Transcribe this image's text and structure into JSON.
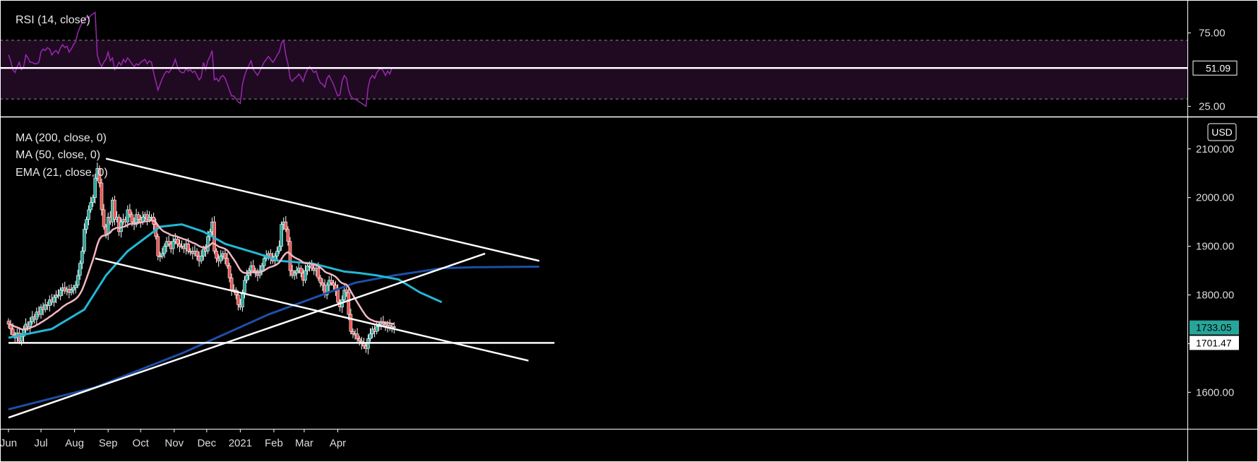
{
  "chart_data": {
    "type": "candlestick",
    "currency": "USD",
    "x_ticks": [
      {
        "label": "Jun",
        "date": "2020-06-01"
      },
      {
        "label": "Jul",
        "date": "2020-07-01"
      },
      {
        "label": "Aug",
        "date": "2020-08-01"
      },
      {
        "label": "Sep",
        "date": "2020-09-01"
      },
      {
        "label": "Oct",
        "date": "2020-10-01"
      },
      {
        "label": "Nov",
        "date": "2020-11-01"
      },
      {
        "label": "Dec",
        "date": "2020-12-01"
      },
      {
        "label": "2021",
        "date": "2021-01-01"
      },
      {
        "label": "Feb",
        "date": "2021-02-01"
      },
      {
        "label": "Mar",
        "date": "2021-03-01"
      },
      {
        "label": "Apr",
        "date": "2021-04-01"
      }
    ],
    "price_axis": {
      "ylim": [
        1525,
        2165
      ],
      "ticks": [
        "2100.00",
        "2000.00",
        "1900.00",
        "1800.00",
        "1700.00",
        "1600.00"
      ]
    },
    "price_tags": [
      {
        "value": 1733.05,
        "label": "1733.05",
        "color": "#26a69a",
        "text_color": "#000000"
      },
      {
        "value": 1701.47,
        "label": "1701.47",
        "color": "#ffffff",
        "text_color": "#000000"
      }
    ],
    "indicators": [
      {
        "label": "MA (200, close, 0)",
        "color": "#1e4fa8"
      },
      {
        "label": "MA (50, close, 0)",
        "color": "#22b8d6"
      },
      {
        "label": "EMA (21, close, 0)",
        "color": "#f3b6c2"
      }
    ],
    "candles": {
      "start_date": "2020-06-01",
      "step_days": 2,
      "closes": [
        1740,
        1730,
        1718,
        1712,
        1722,
        1705,
        1715,
        1728,
        1740,
        1735,
        1745,
        1755,
        1750,
        1765,
        1760,
        1775,
        1770,
        1780,
        1778,
        1790,
        1785,
        1795,
        1800,
        1798,
        1810,
        1815,
        1808,
        1812,
        1805,
        1810,
        1815,
        1820,
        1840,
        1865,
        1890,
        1935,
        1955,
        1975,
        1990,
        2000,
        2040,
        2060,
        2030,
        1975,
        1940,
        1925,
        1960,
        1950,
        1995,
        1955,
        1960,
        1930,
        1950,
        1955,
        1950,
        1975,
        1965,
        1950,
        1945,
        1965,
        1955,
        1950,
        1960,
        1965,
        1955,
        1960,
        1960,
        1945,
        1920,
        1880,
        1880,
        1885,
        1900,
        1910,
        1905,
        1895,
        1910,
        1915,
        1905,
        1900,
        1900,
        1895,
        1905,
        1890,
        1890,
        1885,
        1890,
        1880,
        1870,
        1880,
        1895,
        1890,
        1920,
        1930,
        1950,
        1890,
        1875,
        1870,
        1880,
        1885,
        1875,
        1860,
        1835,
        1810,
        1810,
        1800,
        1780,
        1775,
        1805,
        1830,
        1840,
        1850,
        1860,
        1850,
        1845,
        1840,
        1850,
        1860,
        1875,
        1880,
        1885,
        1875,
        1870,
        1880,
        1890,
        1900,
        1945,
        1950,
        1935,
        1910,
        1850,
        1840,
        1845,
        1850,
        1855,
        1845,
        1830,
        1850,
        1860,
        1860,
        1855,
        1850,
        1855,
        1835,
        1825,
        1820,
        1800,
        1820,
        1830,
        1825,
        1820,
        1810,
        1785,
        1775,
        1790,
        1810,
        1805,
        1760,
        1725,
        1720,
        1720,
        1710,
        1705,
        1700,
        1695,
        1690,
        1710,
        1720,
        1730,
        1725,
        1735,
        1740,
        1745,
        1740,
        1735,
        1738,
        1732,
        1735,
        1733
      ]
    },
    "moving_averages": {
      "ma200": [
        [
          0,
          1565
        ],
        [
          40,
          1610
        ],
        [
          80,
          1680
        ],
        [
          120,
          1760
        ],
        [
          160,
          1825
        ],
        [
          178,
          1840
        ],
        [
          190,
          1848
        ],
        [
          200,
          1855
        ],
        [
          215,
          1857
        ],
        [
          245,
          1858
        ]
      ],
      "ma50": [
        [
          0,
          1712
        ],
        [
          20,
          1730
        ],
        [
          35,
          1770
        ],
        [
          45,
          1840
        ],
        [
          55,
          1890
        ],
        [
          70,
          1940
        ],
        [
          80,
          1945
        ],
        [
          90,
          1930
        ],
        [
          100,
          1905
        ],
        [
          115,
          1885
        ],
        [
          125,
          1870
        ],
        [
          140,
          1865
        ],
        [
          155,
          1848
        ],
        [
          162,
          1845
        ],
        [
          170,
          1840
        ],
        [
          180,
          1832
        ],
        [
          190,
          1805
        ],
        [
          200,
          1785
        ]
      ],
      "ema21_window": 21
    },
    "trendlines": [
      {
        "points": [
          [
            45,
            2080
          ],
          [
            245,
            1870
          ]
        ]
      },
      {
        "points": [
          [
            40,
            1875
          ],
          [
            240,
            1665
          ]
        ]
      },
      {
        "points": [
          [
            0,
            1548
          ],
          [
            220,
            1885
          ]
        ]
      },
      {
        "points": [
          [
            0,
            1701.47
          ],
          [
            252,
            1701.47
          ]
        ]
      }
    ],
    "rsi": {
      "label": "RSI (14, close)",
      "ylim": [
        18,
        97
      ],
      "ticks": [
        "75.00",
        "25.00"
      ],
      "upper_band": 70,
      "lower_band": 30,
      "current_value": 51.09,
      "current_label": "51.09",
      "line_color": "#9c27b0",
      "band_fill": "#1f0a22",
      "values": [
        60,
        56,
        50,
        48,
        52,
        55,
        50,
        52,
        60,
        58,
        55,
        55,
        54,
        54,
        55,
        62,
        64,
        63,
        65,
        64,
        60,
        62,
        63,
        61,
        65,
        67,
        65,
        66,
        62,
        64,
        67,
        69,
        75,
        79,
        82,
        84,
        86,
        85,
        87,
        88,
        89,
        60,
        55,
        52,
        55,
        57,
        62,
        56,
        58,
        50,
        52,
        55,
        53,
        57,
        55,
        58,
        56,
        54,
        52,
        54,
        53,
        55,
        56,
        57,
        54,
        56,
        55,
        48,
        42,
        36,
        40,
        44,
        47,
        49,
        48,
        50,
        53,
        57,
        52,
        49,
        48,
        48,
        51,
        49,
        50,
        48,
        49,
        46,
        43,
        45,
        55,
        50,
        56,
        59,
        63,
        43,
        44,
        42,
        45,
        46,
        44,
        40,
        36,
        32,
        32,
        30,
        28,
        27,
        40,
        46,
        50,
        53,
        56,
        50,
        48,
        46,
        49,
        52,
        55,
        57,
        59,
        57,
        55,
        57,
        60,
        62,
        68,
        70,
        60,
        54,
        44,
        42,
        44,
        45,
        47,
        45,
        42,
        47,
        50,
        52,
        50,
        48,
        49,
        44,
        41,
        40,
        38,
        44,
        46,
        43,
        40,
        36,
        32,
        33,
        42,
        46,
        44,
        36,
        32,
        30,
        30,
        29,
        28,
        27,
        26,
        25,
        38,
        44,
        46,
        44,
        48,
        50,
        51,
        49,
        46,
        49,
        47,
        51,
        51
      ]
    }
  }
}
